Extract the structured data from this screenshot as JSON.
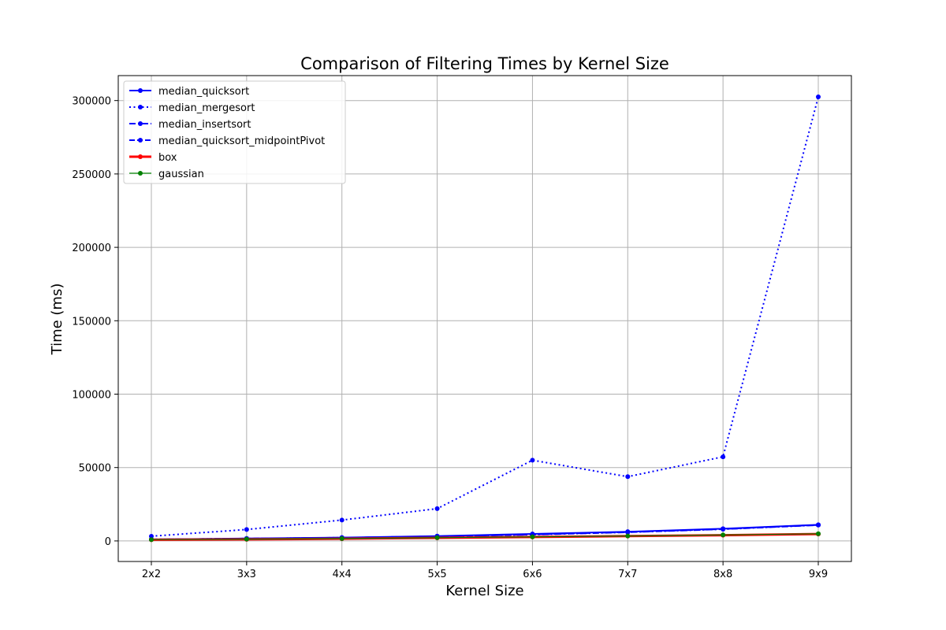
{
  "chart_data": {
    "type": "line",
    "title": "Comparison of Filtering Times by Kernel Size",
    "xlabel": "Kernel Size",
    "ylabel": "Time (ms)",
    "categories": [
      "2x2",
      "3x3",
      "4x4",
      "5x5",
      "6x6",
      "7x7",
      "8x8",
      "9x9"
    ],
    "ylim": [
      -14000,
      317000
    ],
    "yticks": [
      0,
      50000,
      100000,
      150000,
      200000,
      250000,
      300000
    ],
    "ytick_labels": [
      "0",
      "50000",
      "100000",
      "150000",
      "200000",
      "250000",
      "300000"
    ],
    "grid": true,
    "legend_position": "upper-left",
    "series": [
      {
        "name": "median_quicksort",
        "color": "#0000ff",
        "linestyle": "solid",
        "linewidth": 2,
        "values": [
          1000,
          1700,
          2300,
          3300,
          4800,
          6300,
          8300,
          11000
        ]
      },
      {
        "name": "median_mergesort",
        "color": "#0000ff",
        "linestyle": "dotted",
        "linewidth": 2,
        "values": [
          3200,
          7800,
          14200,
          22000,
          55000,
          43800,
          57300,
          302500
        ]
      },
      {
        "name": "median_insertsort",
        "color": "#0000ff",
        "linestyle": "dashdot",
        "linewidth": 2,
        "values": [
          1000,
          1600,
          2200,
          3100,
          4300,
          5900,
          8000,
          10800
        ]
      },
      {
        "name": "median_quicksort_midpointPivot",
        "color": "#0000ff",
        "linestyle": "dashed",
        "linewidth": 2,
        "values": [
          1000,
          1600,
          2200,
          3100,
          4400,
          6000,
          8100,
          10900
        ]
      },
      {
        "name": "box",
        "color": "#ff0000",
        "linestyle": "solid",
        "linewidth": 3,
        "values": [
          800,
          1100,
          1500,
          2100,
          2700,
          3300,
          3900,
          4700
        ]
      },
      {
        "name": "gaussian",
        "color": "#008000",
        "linestyle": "solid",
        "linewidth": 1.2,
        "values": [
          900,
          1200,
          1600,
          2200,
          2800,
          3400,
          4100,
          4900
        ]
      }
    ]
  }
}
